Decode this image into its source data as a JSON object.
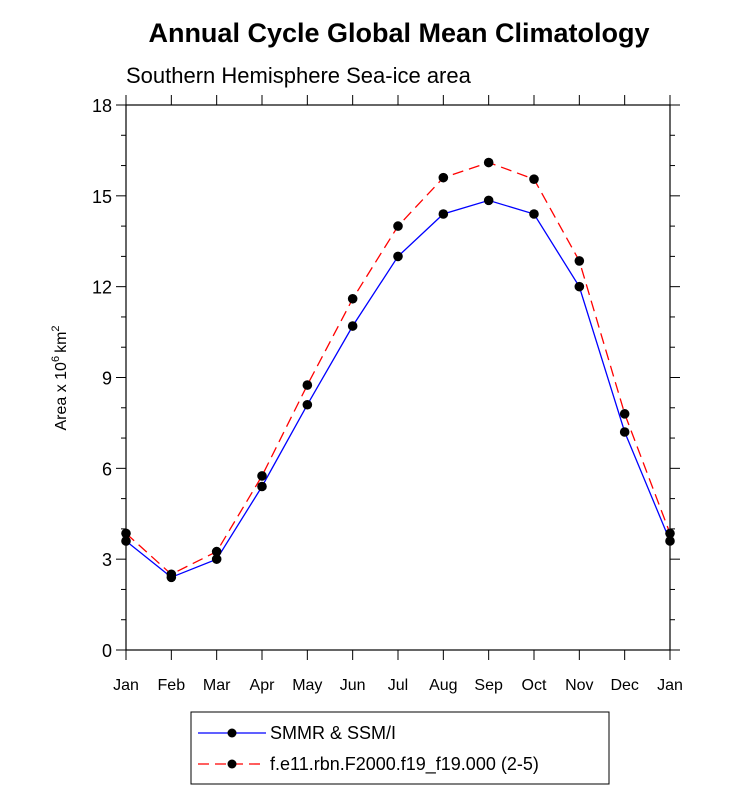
{
  "chart_data": {
    "type": "line",
    "title": "Annual Cycle Global Mean Climatology",
    "subtitle": "Southern Hemisphere Sea-ice area",
    "ylabel": "Area x 10",
    "ylabel_exp": "6",
    "ylabel_unit": "km",
    "ylabel_unit_exp": "2",
    "xlabel": "",
    "categories": [
      "Jan",
      "Feb",
      "Mar",
      "Apr",
      "May",
      "Jun",
      "Jul",
      "Aug",
      "Sep",
      "Oct",
      "Nov",
      "Dec",
      "Jan"
    ],
    "ylim": [
      0,
      18
    ],
    "yticks": [
      0,
      3,
      6,
      9,
      12,
      15,
      18
    ],
    "series": [
      {
        "name": "SMMR & SSM/I",
        "color": "#0000ff",
        "dash": "solid",
        "values": [
          3.6,
          2.4,
          3.0,
          5.4,
          8.1,
          10.7,
          13.0,
          14.4,
          14.85,
          14.4,
          12.0,
          7.2,
          3.6
        ]
      },
      {
        "name": "f.e11.rbn.F2000.f19_f19.000 (2-5)",
        "color": "#ff0000",
        "dash": "dashed",
        "values": [
          3.85,
          2.5,
          3.25,
          5.75,
          8.75,
          11.6,
          14.0,
          15.6,
          16.1,
          15.55,
          12.85,
          7.8,
          3.85
        ]
      }
    ],
    "legend_position": "bottom-center"
  }
}
